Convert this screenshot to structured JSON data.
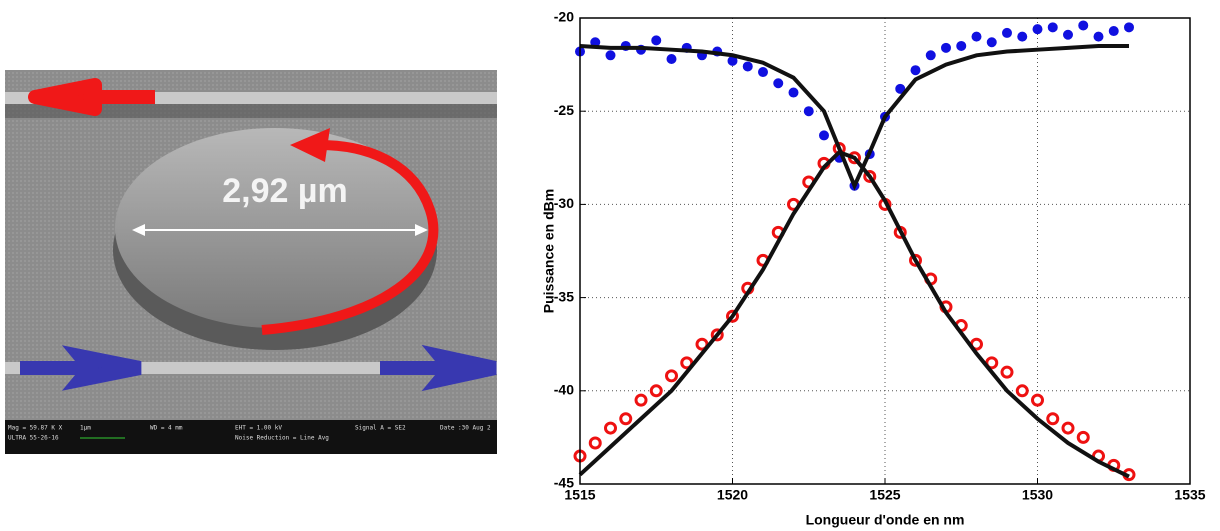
{
  "micrograph": {
    "size_label": "2,92 µm",
    "info": [
      "Mag = 59.87 K X",
      "1µm",
      "WD = 4 mm",
      "EHT = 1.00 kV",
      "Signal A = SE2",
      "Date :30 Aug 2",
      "ULTRA 55-26-16",
      "Noise Reduction = Line Avg"
    ]
  },
  "chart_data": {
    "type": "scatter",
    "xlabel": "Longueur d'onde en nm",
    "ylabel": "Puissance en dBm",
    "xlim": [
      1515,
      1535
    ],
    "ylim": [
      -45,
      -20
    ],
    "xticks": [
      1515,
      1520,
      1525,
      1530,
      1535
    ],
    "yticks": [
      -20,
      -25,
      -30,
      -35,
      -40,
      -45
    ],
    "grid": true,
    "series": [
      {
        "color": "#1010e0",
        "marker": "dot",
        "x": [
          1515,
          1515.5,
          1516,
          1516.5,
          1517,
          1517.5,
          1518,
          1518.5,
          1519,
          1519.5,
          1520,
          1520.5,
          1521,
          1521.5,
          1522,
          1522.5,
          1523,
          1523.5,
          1524,
          1524.5,
          1525,
          1525.5,
          1526,
          1526.5,
          1527,
          1527.5,
          1528,
          1528.5,
          1529,
          1529.5,
          1530,
          1530.5,
          1531,
          1531.5,
          1532,
          1532.5,
          1533
        ],
        "values": [
          -21.8,
          -21.3,
          -22.0,
          -21.5,
          -21.7,
          -21.2,
          -22.2,
          -21.6,
          -22.0,
          -21.8,
          -22.3,
          -22.6,
          -22.9,
          -23.5,
          -24.0,
          -25.0,
          -26.3,
          -27.5,
          -29.0,
          -27.3,
          -25.3,
          -23.8,
          -22.8,
          -22.0,
          -21.6,
          -21.5,
          -21.0,
          -21.3,
          -20.8,
          -21.0,
          -20.6,
          -20.5,
          -20.9,
          -20.4,
          -21.0,
          -20.7,
          -20.5
        ]
      },
      {
        "color": "#ee1111",
        "marker": "ring",
        "x": [
          1515,
          1515.5,
          1516,
          1516.5,
          1517,
          1517.5,
          1518,
          1518.5,
          1519,
          1519.5,
          1520,
          1520.5,
          1521,
          1521.5,
          1522,
          1522.5,
          1523,
          1523.5,
          1524,
          1524.5,
          1525,
          1525.5,
          1526,
          1526.5,
          1527,
          1527.5,
          1528,
          1528.5,
          1529,
          1529.5,
          1530,
          1530.5,
          1531,
          1531.5,
          1532,
          1532.5,
          1533
        ],
        "values": [
          -43.5,
          -42.8,
          -42,
          -41.5,
          -40.5,
          -40,
          -39.2,
          -38.5,
          -37.5,
          -37,
          -36,
          -34.5,
          -33,
          -31.5,
          -30,
          -28.8,
          -27.8,
          -27.0,
          -27.5,
          -28.5,
          -30,
          -31.5,
          -33,
          -34,
          -35.5,
          -36.5,
          -37.5,
          -38.5,
          -39,
          -40,
          -40.5,
          -41.5,
          -42,
          -42.5,
          -43.5,
          -44,
          -44.5
        ]
      },
      {
        "color": "#111111",
        "marker": "line",
        "x": [
          1515,
          1516,
          1517,
          1518,
          1519,
          1520,
          1521,
          1522,
          1523,
          1523.5,
          1524,
          1524.5,
          1525,
          1526,
          1527,
          1528,
          1529,
          1530,
          1531,
          1532,
          1533
        ],
        "values": [
          -21.5,
          -21.6,
          -21.6,
          -21.7,
          -21.8,
          -22.0,
          -22.4,
          -23.2,
          -25.0,
          -27.0,
          -29.0,
          -27.2,
          -25.3,
          -23.3,
          -22.5,
          -22.0,
          -21.8,
          -21.7,
          -21.6,
          -21.5,
          -21.5
        ]
      },
      {
        "color": "#111111",
        "marker": "line",
        "x": [
          1515,
          1516,
          1517,
          1518,
          1519,
          1520,
          1521,
          1522,
          1523,
          1523.5,
          1524,
          1524.5,
          1525,
          1526,
          1527,
          1528,
          1529,
          1530,
          1531,
          1532,
          1533
        ],
        "values": [
          -44.5,
          -43,
          -41.5,
          -40,
          -38,
          -36,
          -33.5,
          -30.5,
          -28,
          -27.2,
          -27.5,
          -28.5,
          -29.8,
          -33,
          -35.8,
          -38,
          -40,
          -41.5,
          -42.8,
          -43.8,
          -44.6
        ]
      }
    ]
  }
}
